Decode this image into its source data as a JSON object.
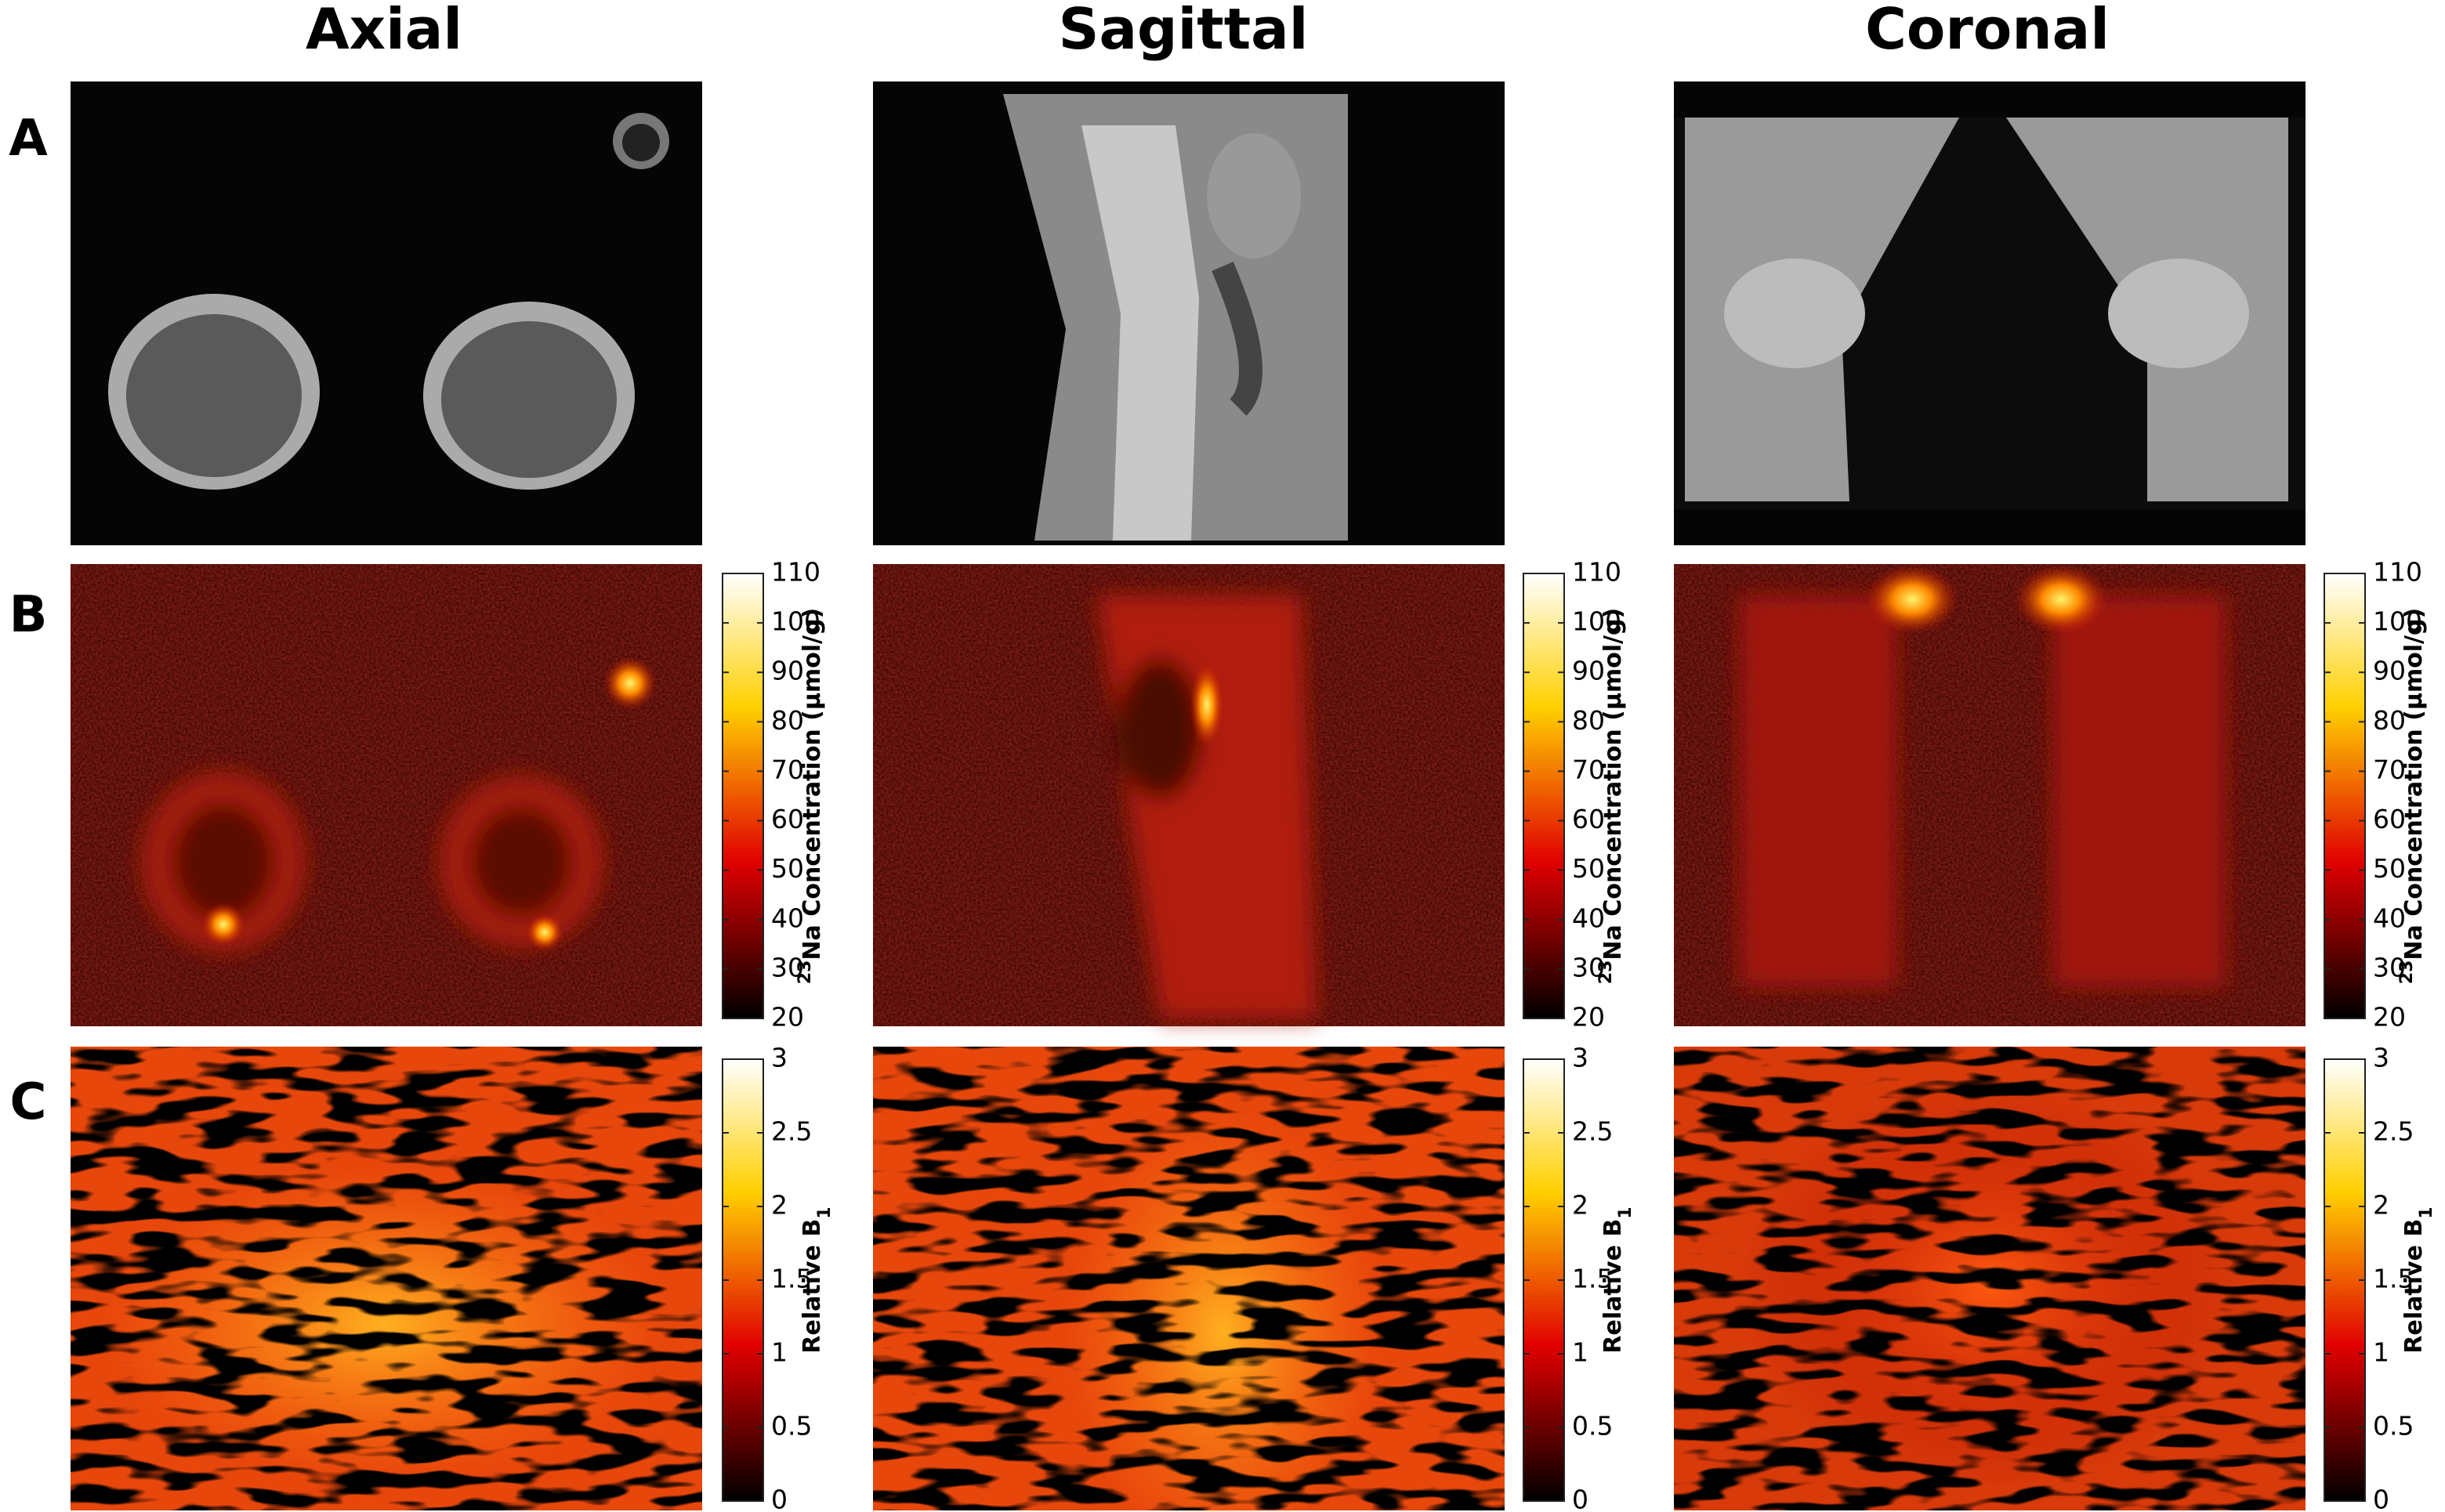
{
  "columns": [
    {
      "title": "Axial"
    },
    {
      "title": "Sagittal"
    },
    {
      "title": "Coronal"
    }
  ],
  "rows": [
    {
      "label": "A"
    },
    {
      "label": "B",
      "colorbar": {
        "label_sup": "23",
        "label": "Na Concentration (µmol/g)",
        "lim": [
          20,
          110
        ],
        "ticks": [
          20,
          30,
          40,
          50,
          60,
          70,
          80,
          90,
          100,
          110
        ]
      }
    },
    {
      "label": "C",
      "colorbar": {
        "label": "Relative B",
        "label_sub": "1",
        "lim": [
          0,
          3
        ],
        "ticks": [
          0,
          0.5,
          1,
          1.5,
          2,
          2.5,
          3
        ]
      }
    }
  ]
}
